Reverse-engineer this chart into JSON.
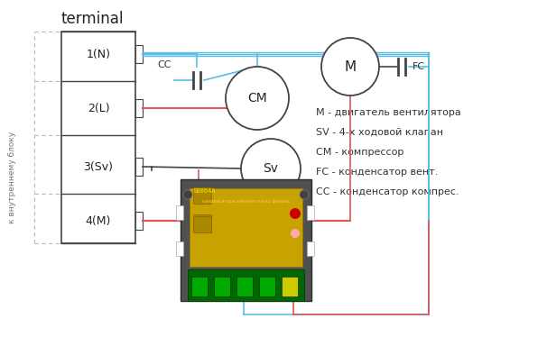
{
  "title": "terminal",
  "bg_color": "#ffffff",
  "blue_color": "#5bbde4",
  "red_color": "#e05555",
  "dark_color": "#444444",
  "gray_color": "#666666",
  "legend_lines": [
    "М - двигатель вентилятора",
    "SV - 4-х ходовой клапан",
    "СМ - компрессор",
    "FC - конденсатор вент.",
    "СС - конденсатор компрес."
  ],
  "side_label": "к внутреннему блоку",
  "terminal_rows": [
    "1(N)",
    "2(L)",
    "3(Sv)",
    "4(M)"
  ]
}
